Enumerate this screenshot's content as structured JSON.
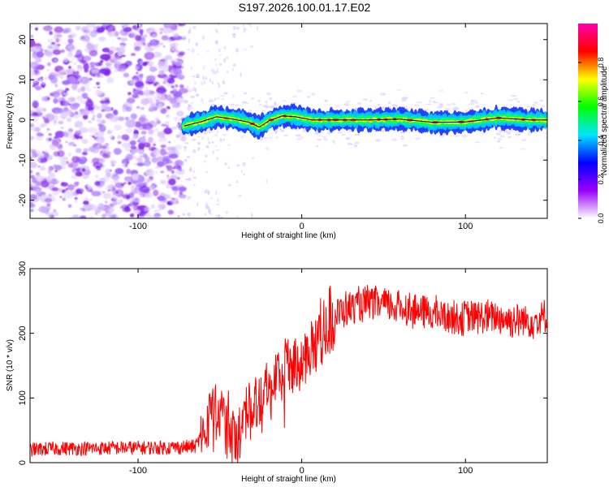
{
  "title": "S197.2026.100.01.17.E02",
  "chart_data": [
    {
      "type": "heatmap",
      "xlabel": "Height of straight line (km)",
      "ylabel": "Frequency (Hz)",
      "xlim": [
        -166,
        150
      ],
      "ylim": [
        -24.5,
        24
      ],
      "xticks": [
        -100,
        0,
        100
      ],
      "yticks": [
        -20,
        -10,
        0,
        10,
        20
      ],
      "signal_line_frequency": 0,
      "noise_region_x": [
        -166,
        -72
      ],
      "colorbar": {
        "label": "Normalized spectral amplitude",
        "range": [
          0,
          1
        ],
        "ticks": [
          0.0,
          0.2,
          0.4,
          0.6,
          0.8
        ],
        "tick_labels": [
          "0.0",
          "0.2",
          "0.4",
          "0.6",
          "0.8"
        ],
        "colors": [
          "#ffffff",
          "#9900ff",
          "#0000ff",
          "#00e5ff",
          "#00ff00",
          "#ffff00",
          "#ff0000",
          "#ff00aa"
        ]
      },
      "tracked_centerline": {
        "x": [
          -72,
          -62,
          -52,
          -42,
          -32,
          -26,
          -20,
          -12,
          -4,
          6,
          20,
          40,
          60,
          80,
          100,
          120,
          140,
          150
        ],
        "y": [
          -1.5,
          -0.5,
          0.8,
          0.2,
          -0.6,
          -1.8,
          -0.2,
          1.0,
          0.8,
          0.0,
          0.0,
          0.0,
          0.2,
          -0.6,
          -0.5,
          0.5,
          0.0,
          0.0
        ]
      }
    },
    {
      "type": "line",
      "xlabel": "Height of straight line (km)",
      "ylabel": "SNR (10 * v/v)",
      "xlim": [
        -166,
        150
      ],
      "ylim": [
        0,
        300
      ],
      "xticks": [
        -100,
        0,
        100
      ],
      "yticks": [
        0,
        100,
        200,
        300
      ],
      "color": "#ff0000",
      "series": [
        {
          "name": "SNR",
          "x": [
            -166,
            -150,
            -130,
            -110,
            -90,
            -75,
            -65,
            -62,
            -58,
            -54,
            -50,
            -46,
            -42,
            -40,
            -36,
            -32,
            -28,
            -24,
            -20,
            -16,
            -12,
            -8,
            -4,
            0,
            4,
            8,
            12,
            16,
            20,
            25,
            30,
            40,
            50,
            60,
            70,
            80,
            90,
            100,
            110,
            120,
            130,
            140,
            150
          ],
          "y": [
            20,
            22,
            22,
            23,
            23,
            24,
            25,
            40,
            60,
            75,
            80,
            60,
            40,
            30,
            70,
            90,
            100,
            110,
            115,
            130,
            140,
            145,
            150,
            160,
            175,
            190,
            205,
            215,
            225,
            235,
            240,
            245,
            245,
            240,
            235,
            230,
            225,
            225,
            225,
            225,
            220,
            220,
            225
          ]
        }
      ]
    }
  ]
}
